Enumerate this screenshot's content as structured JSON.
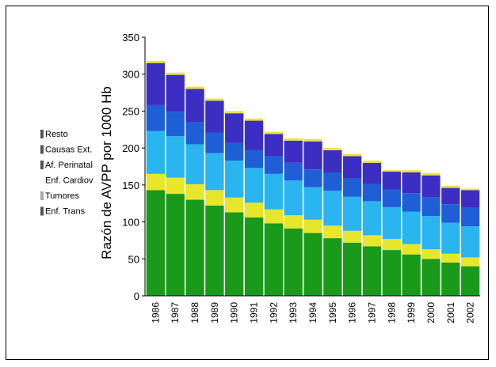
{
  "chart_data": {
    "type": "area",
    "stacked": true,
    "xlabel": "",
    "ylabel": "Razón de AVPP por 1000 Hb",
    "ylim": [
      0,
      350
    ],
    "yticks": [
      0,
      50,
      100,
      150,
      200,
      250,
      300,
      350
    ],
    "categories": [
      "1986",
      "1987",
      "1988",
      "1989",
      "1990",
      "1991",
      "1992",
      "1993",
      "1994",
      "1995",
      "1996",
      "1997",
      "1998",
      "1999",
      "2000",
      "2001",
      "2002"
    ],
    "series": [
      {
        "name": "Enf. Trans",
        "color": "#1a9a1a",
        "values": [
          143,
          138,
          130,
          122,
          113,
          106,
          98,
          91,
          85,
          78,
          72,
          67,
          62,
          56,
          50,
          45,
          40
        ]
      },
      {
        "name": "Tumores",
        "color": "#e6e62a",
        "values": [
          22,
          22,
          21,
          21,
          20,
          20,
          19,
          18,
          18,
          17,
          16,
          15,
          15,
          14,
          13,
          12,
          12
        ]
      },
      {
        "name": "Enf. Cardiov",
        "color": "#2ab4f0",
        "values": [
          58,
          56,
          54,
          50,
          50,
          47,
          48,
          47,
          44,
          47,
          46,
          46,
          43,
          44,
          45,
          42,
          42
        ]
      },
      {
        "name": "Af. Perinatal",
        "color": "#1f5fd6",
        "values": [
          35,
          33,
          30,
          28,
          24,
          24,
          24,
          24,
          24,
          25,
          25,
          23,
          24,
          25,
          25,
          25,
          25
        ]
      },
      {
        "name": "Causas Ext.",
        "color": "#3c2ec2",
        "values": [
          57,
          50,
          45,
          43,
          40,
          40,
          30,
          30,
          38,
          30,
          30,
          29,
          24,
          28,
          30,
          22,
          24
        ]
      },
      {
        "name": "Resto",
        "color": "#ece23a",
        "values": [
          3,
          3,
          3,
          3,
          3,
          3,
          3,
          3,
          3,
          3,
          3,
          3,
          2,
          3,
          3,
          3,
          2
        ]
      }
    ],
    "legend_labels": [
      "Resto",
      "Causas Ext.",
      "Af. Perinatal",
      "Enf. Cardiov",
      "Tumores",
      "Enf. Trans"
    ],
    "legend_position": "left",
    "grid": false
  }
}
